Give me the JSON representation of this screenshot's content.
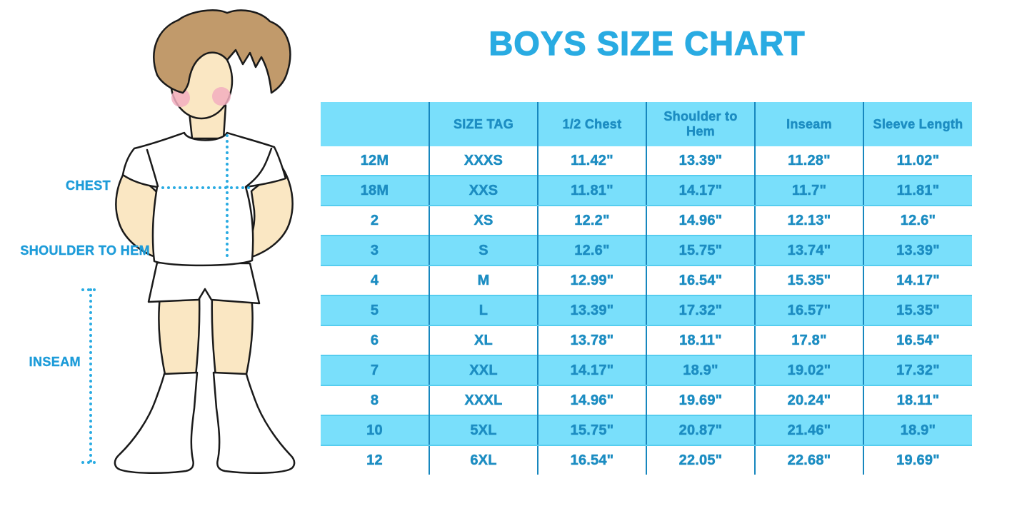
{
  "title": "BOYS SIZE CHART",
  "figure": {
    "description": "illustration of a boy in white t-shirt, shorts and knee socks with measurement guide lines",
    "chest_label": "CHEST",
    "shoulder_to_hem_label": "SHOULDER TO HEM",
    "inseam_label": "INSEAM"
  },
  "chart_data": {
    "type": "table",
    "title": "BOYS SIZE CHART",
    "columns": [
      "",
      "SIZE TAG",
      "1/2 Chest",
      "Shoulder to Hem",
      "Inseam",
      "Sleeve Length"
    ],
    "rows": [
      [
        "12M",
        "XXXS",
        "11.42\"",
        "13.39\"",
        "11.28\"",
        "11.02\""
      ],
      [
        "18M",
        "XXS",
        "11.81\"",
        "14.17\"",
        "11.7\"",
        "11.81\""
      ],
      [
        "2",
        "XS",
        "12.2\"",
        "14.96\"",
        "12.13\"",
        "12.6\""
      ],
      [
        "3",
        "S",
        "12.6\"",
        "15.75\"",
        "13.74\"",
        "13.39\""
      ],
      [
        "4",
        "M",
        "12.99\"",
        "16.54\"",
        "15.35\"",
        "14.17\""
      ],
      [
        "5",
        "L",
        "13.39\"",
        "17.32\"",
        "16.57\"",
        "15.35\""
      ],
      [
        "6",
        "XL",
        "13.78\"",
        "18.11\"",
        "17.8\"",
        "16.54\""
      ],
      [
        "7",
        "XXL",
        "14.17\"",
        "18.9\"",
        "19.02\"",
        "17.32\""
      ],
      [
        "8",
        "XXXL",
        "14.96\"",
        "19.69\"",
        "20.24\"",
        "18.11\""
      ],
      [
        "10",
        "5XL",
        "15.75\"",
        "20.87\"",
        "21.46\"",
        "18.9\""
      ],
      [
        "12",
        "6XL",
        "16.54\"",
        "22.05\"",
        "22.68\"",
        "19.69\""
      ]
    ],
    "layout_hints": {
      "striped_rows": "header and every second data row light cyan",
      "grid": "vertical column separators only"
    }
  },
  "colors": {
    "accent_blue": "#29ABE2",
    "label_blue": "#1E9CD9",
    "table_text": "#1C8DC2",
    "row_cyan": "#79DFFB",
    "separator": "#1787BE",
    "row_edge": "#55CDEF",
    "skin": "#FAE7C3",
    "hair": "#C19A6B",
    "blush": "#F2AEC0",
    "outline": "#1A1A1A"
  }
}
